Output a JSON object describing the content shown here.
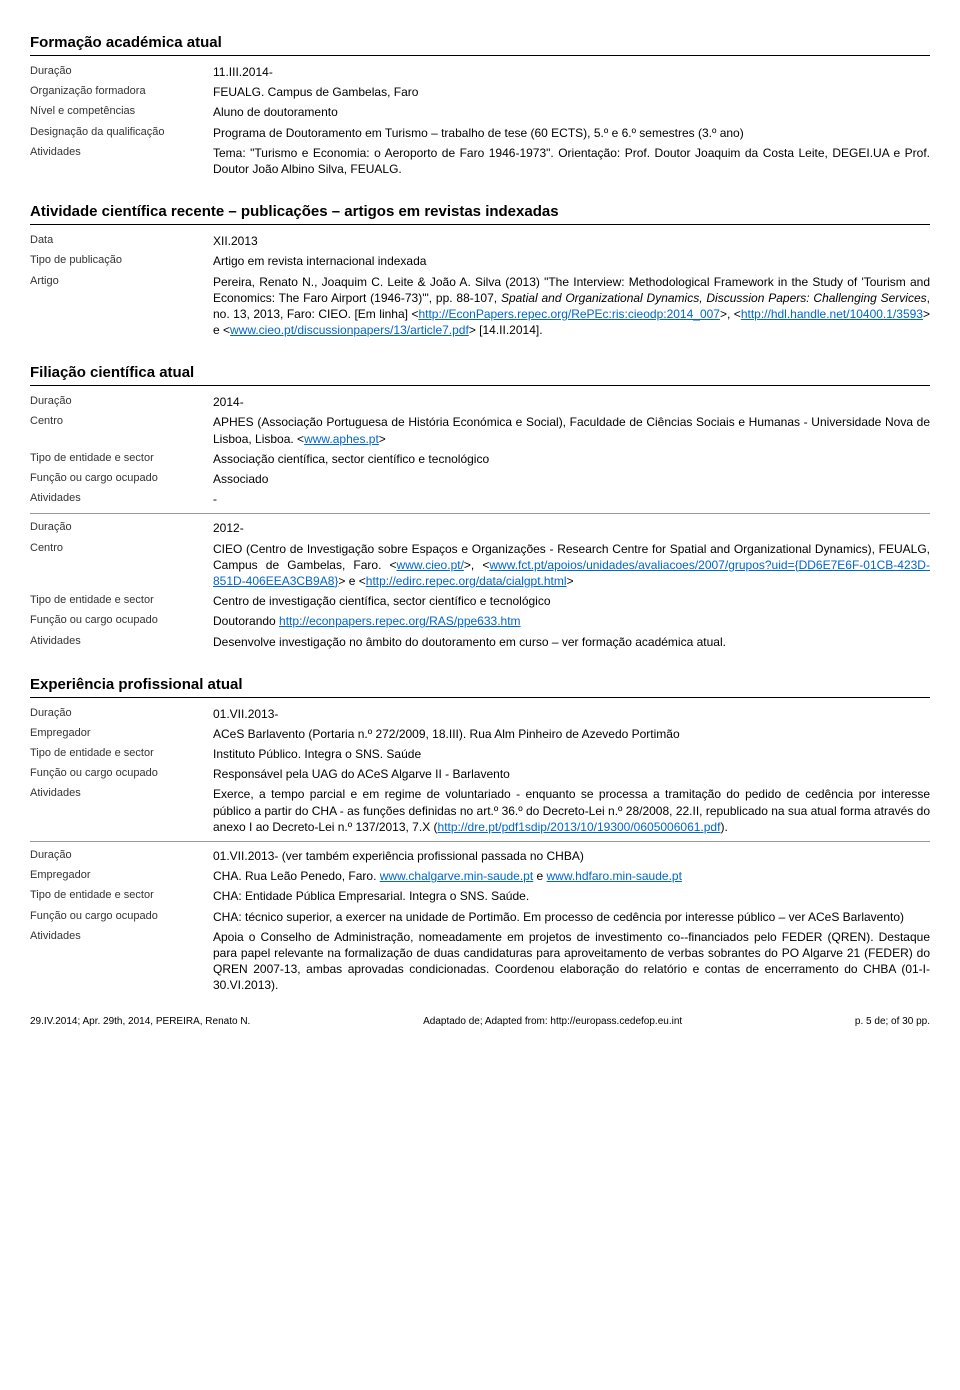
{
  "sections": {
    "formacao": {
      "title": "Formação académica atual",
      "rows": [
        {
          "label": "Duração",
          "value": "11.III.2014-"
        },
        {
          "label": "Organização formadora",
          "value": "FEUALG. Campus de Gambelas, Faro"
        },
        {
          "label": "Nível e competências",
          "value": "Aluno de doutoramento"
        },
        {
          "label": "Designação da qualificação",
          "value": "Programa de Doutoramento em Turismo – trabalho de tese (60 ECTS), 5.º e 6.º semestres (3.º ano)"
        },
        {
          "label": "Atividades",
          "value": "Tema: \"Turismo e Economia: o Aeroporto de Faro 1946-1973\". Orientação: Prof. Doutor Joaquim da Costa Leite, DEGEI.UA e Prof. Doutor João Albino Silva, FEUALG."
        }
      ]
    },
    "atividade": {
      "title": "Atividade científica recente – publicações – artigos em revistas indexadas",
      "rows": [
        {
          "label": "Data",
          "value": "XII.2013"
        },
        {
          "label": "Tipo de publicação",
          "value": "Artigo em revista internacional indexada"
        }
      ],
      "artigo_label": "Artigo",
      "artigo_pre": "Pereira, Renato N., Joaquim C. Leite & João A. Silva (2013) \"The Interview: Methodological Framework in the Study of 'Tourism and Economics: The Faro Airport (1946-73)'\", pp. 88-107, ",
      "artigo_italic": "Spatial and Organizational Dynamics, Discussion Papers: Challenging Services",
      "artigo_post1": ", no. 13, 2013, Faro: CIEO. [Em linha] <",
      "artigo_link1": "http://EconPapers.repec.org/RePEc:ris:cieodp:2014_007",
      "artigo_post2": ">, <",
      "artigo_link2": "http://hdl.handle.net/10400.1/3593",
      "artigo_post3": "> e <",
      "artigo_link3": "www.cieo.pt/discussionpapers/13/article7.pdf",
      "artigo_post4": "> [14.II.2014]."
    },
    "filiacao": {
      "title": "Filiação científica atual",
      "block1": {
        "duracao_label": "Duração",
        "duracao": "2014-",
        "centro_label": "Centro",
        "centro_pre": "APHES (Associação Portuguesa de História Económica e Social), Faculdade de Ciências Sociais e Humanas - Universidade Nova de Lisboa, Lisboa. <",
        "centro_link": "www.aphes.pt",
        "centro_post": ">",
        "tipo_label": "Tipo de entidade e sector",
        "tipo": "Associação científica, sector científico e tecnológico",
        "funcao_label": "Função ou cargo ocupado",
        "funcao": "Associado",
        "ativ_label": "Atividades",
        "ativ": "-"
      },
      "block2": {
        "duracao_label": "Duração",
        "duracao": "2012-",
        "centro_label": "Centro",
        "centro_pre": "CIEO (Centro de Investigação sobre Espaços e Organizações - Research Centre for Spatial and Organizational Dynamics), FEUALG, Campus de Gambelas, Faro. <",
        "centro_link1": "www.cieo.pt/",
        "centro_mid1": ">, <",
        "centro_link2": "www.fct.pt/apoios/unidades/avaliacoes/2007/grupos?uid={DD6E7E6F-01CB-423D-851D-406EEA3CB9A8}",
        "centro_mid2": "> e <",
        "centro_link3": "http://edirc.repec.org/data/cialgpt.html",
        "centro_post": ">",
        "tipo_label": "Tipo de entidade e sector",
        "tipo": "Centro de investigação científica, sector científico e tecnológico",
        "funcao_label": "Função ou cargo ocupado",
        "funcao_pre": "Doutorando ",
        "funcao_link": "http://econpapers.repec.org/RAS/ppe633.htm",
        "ativ_label": "Atividades",
        "ativ": "Desenvolve investigação no âmbito do doutoramento em curso – ver formação académica atual."
      }
    },
    "experiencia": {
      "title": "Experiência profissional atual",
      "block1": {
        "duracao_label": "Duração",
        "duracao": "01.VII.2013-",
        "emp_label": "Empregador",
        "emp": "ACeS Barlavento (Portaria n.º 272/2009, 18.III). Rua Alm Pinheiro de Azevedo Portimão",
        "tipo_label": "Tipo de entidade e sector",
        "tipo": "Instituto Público. Integra o SNS. Saúde",
        "funcao_label": "Função ou cargo ocupado",
        "funcao": "Responsável pela UAG do ACeS Algarve II - Barlavento",
        "ativ_label": "Atividades",
        "ativ_pre": "Exerce, a tempo parcial e em regime de voluntariado - enquanto se processa a tramitação do pedido de cedência por interesse público a partir do CHA - as funções definidas no art.º 36.º do Decreto-Lei n.º 28/2008, 22.II, republicado na sua atual forma através do anexo I ao Decreto-Lei n.º 137/2013, 7.X (",
        "ativ_link": "http://dre.pt/pdf1sdip/2013/10/19300/0605006061.pdf",
        "ativ_post": ")."
      },
      "block2": {
        "duracao_label": "Duração",
        "duracao": "01.VII.2013- (ver também experiência profissional passada no CHBA)",
        "emp_label": "Empregador",
        "emp_pre": "CHA. Rua Leão Penedo, Faro. ",
        "emp_link1": "www.chalgarve.min-saude.pt",
        "emp_mid": " e ",
        "emp_link2": "www.hdfaro.min-saude.pt",
        "tipo_label": "Tipo de entidade e sector",
        "tipo": "CHA: Entidade Pública Empresarial. Integra o SNS. Saúde.",
        "funcao_label": "Função ou cargo ocupado",
        "funcao": "CHA: técnico superior, a exercer na unidade de Portimão. Em processo de cedência por interesse público – ver ACeS Barlavento)",
        "ativ_label": "Atividades",
        "ativ": "Apoia o Conselho de Administração, nomeadamente em projetos de investimento co--financiados pelo FEDER (QREN). Destaque para papel relevante na formalização de duas candidaturas para aproveitamento de verbas sobrantes do PO Algarve 21 (FEDER) do QREN 2007-13, ambas aprovadas condicionadas. Coordenou elaboração do relatório e contas de encerramento do CHBA (01-I-30.VI.2013)."
      }
    }
  },
  "footer": {
    "left": "29.IV.2014; Apr. 29th, 2014, PEREIRA, Renato N.",
    "mid": "Adaptado de; Adapted from: http://europass.cedefop.eu.int",
    "right": "p. 5 de; of 30 pp."
  }
}
